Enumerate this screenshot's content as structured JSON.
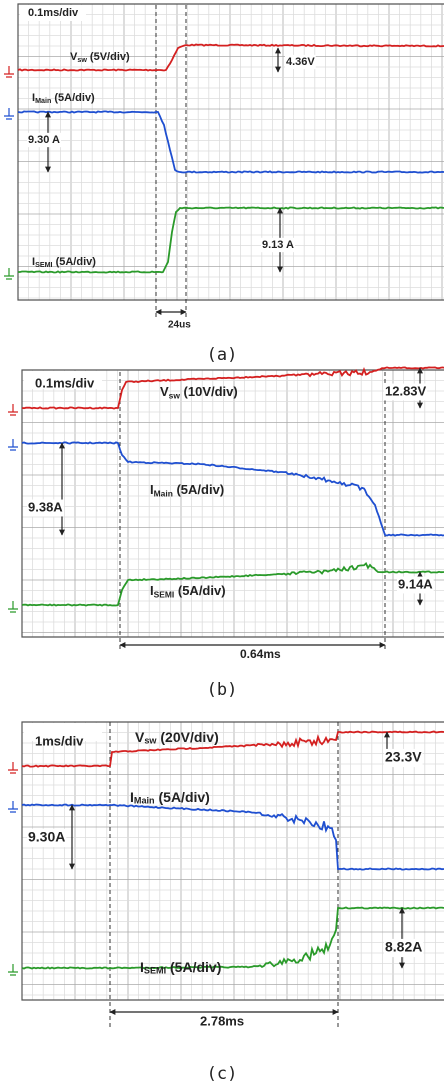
{
  "panels": [
    {
      "timebase": "0.1ms/div",
      "vsw": {
        "main": "V",
        "sub": "sw",
        "rest": " (5V/div)"
      },
      "imain": {
        "main": "I",
        "sub": "Main",
        "rest": " (5A/div)"
      },
      "isemi": {
        "main": "I",
        "sub": "SEMI",
        "rest": " (5A/div)"
      },
      "measurements": [
        "4.36V",
        "9.30 A",
        "9.13 A",
        "24us"
      ],
      "caption": "(a)"
    },
    {
      "timebase": "0.1ms/div",
      "vsw": {
        "main": "V",
        "sub": "sw",
        "rest": " (10V/div)"
      },
      "imain": {
        "main": "I",
        "sub": "Main",
        "rest": " (5A/div)"
      },
      "isemi": {
        "main": "I",
        "sub": "SEMI",
        "rest": " (5A/div)"
      },
      "measurements": [
        "12.83V",
        "9.38A",
        "9.14A",
        "0.64ms"
      ],
      "caption": "(b)"
    },
    {
      "timebase": "1ms/div",
      "vsw": {
        "main": "V",
        "sub": "sw",
        "rest": " (20V/div)"
      },
      "imain": {
        "main": "I",
        "sub": "Main",
        "rest": " (5A/div)"
      },
      "isemi": {
        "main": "I",
        "sub": "SEMI",
        "rest": " (5A/div)"
      },
      "measurements": [
        "23.3V",
        "9.30A",
        "8.82A",
        "2.78ms"
      ],
      "caption": "(c)"
    }
  ]
}
